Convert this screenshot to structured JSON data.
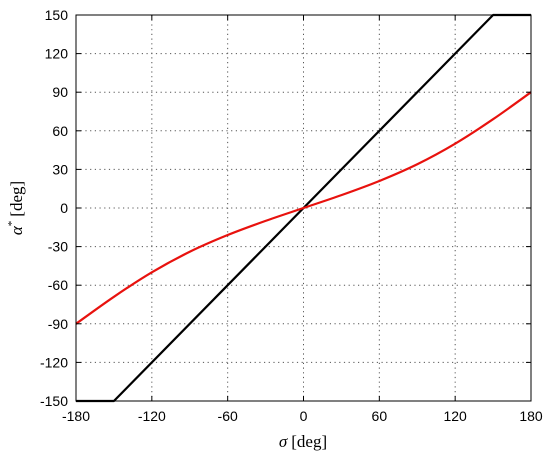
{
  "chart_data": {
    "type": "line",
    "title": "",
    "xlabel_symbol": "σ",
    "xlabel_unit": "[deg]",
    "ylabel_symbol": "α",
    "ylabel_superscript": "*",
    "ylabel_unit": "[deg]",
    "xlim": [
      -180,
      180
    ],
    "ylim": [
      -150,
      150
    ],
    "xticks": [
      -180,
      -120,
      -60,
      0,
      60,
      120,
      180
    ],
    "yticks": [
      -150,
      -120,
      -90,
      -60,
      -30,
      0,
      30,
      60,
      90,
      120,
      150
    ],
    "grid": "dotted",
    "legend": "none",
    "series": [
      {
        "color": "#000000",
        "x": [
          -180,
          -150,
          150,
          180
        ],
        "y": [
          -150,
          -150,
          150,
          150
        ]
      },
      {
        "color": "#e8120e",
        "x": [
          -180,
          -150,
          -120,
          -90,
          -60,
          -30,
          0,
          30,
          60,
          90,
          120,
          150,
          180
        ],
        "y": [
          -90,
          -69,
          -50,
          -34,
          -21,
          -10,
          0,
          10,
          21,
          34,
          50,
          69,
          90
        ]
      }
    ]
  }
}
